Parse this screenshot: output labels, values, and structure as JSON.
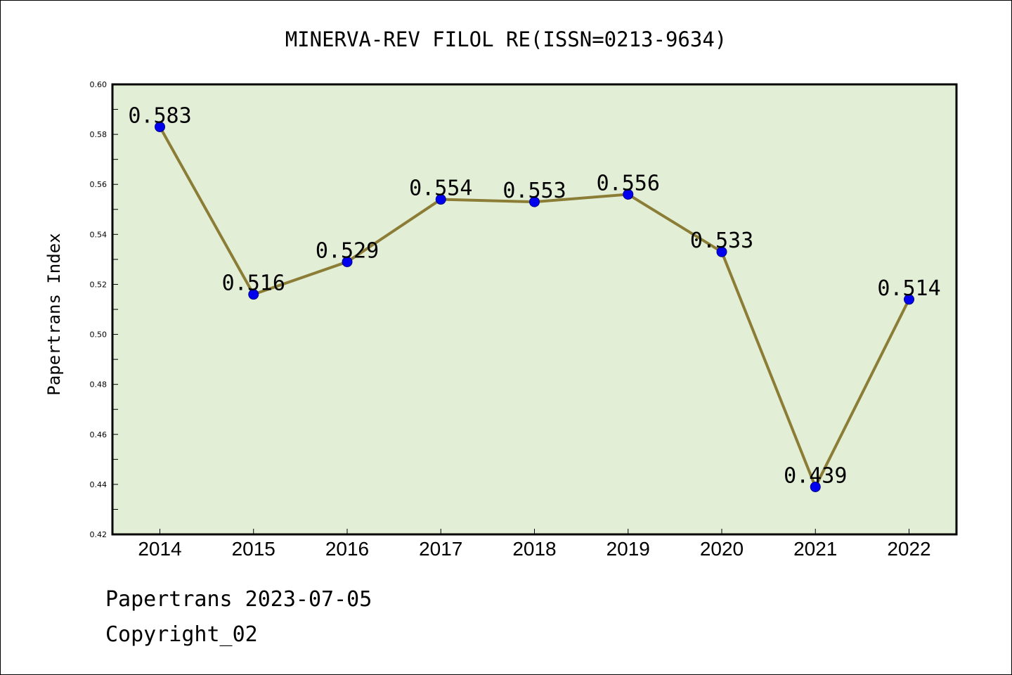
{
  "chart_data": {
    "type": "line",
    "title": "MINERVA-REV FILOL RE(ISSN=0213-9634)",
    "xlabel": "",
    "ylabel": "Papertrans Index",
    "categories": [
      "2014",
      "2015",
      "2016",
      "2017",
      "2018",
      "2019",
      "2020",
      "2021",
      "2022"
    ],
    "values": [
      0.583,
      0.516,
      0.529,
      0.554,
      0.553,
      0.556,
      0.533,
      0.439,
      0.514
    ],
    "data_labels": [
      "0.583",
      "0.516",
      "0.529",
      "0.554",
      "0.553",
      "0.556",
      "0.533",
      "0.439",
      "0.514"
    ],
    "ylim": [
      0.42,
      0.6
    ],
    "yticks": [
      "0.42",
      "0.44",
      "0.46",
      "0.48",
      "0.50",
      "0.52",
      "0.54",
      "0.56",
      "0.58",
      "0.60"
    ],
    "grid": false,
    "legend": "none",
    "colors": {
      "plot_background": "#e2efd6",
      "line": "#8b7d35",
      "marker": "#0000ee"
    }
  },
  "footer": {
    "source": "Papertrans 2023-07-05",
    "copyright": "Copyright_02"
  }
}
